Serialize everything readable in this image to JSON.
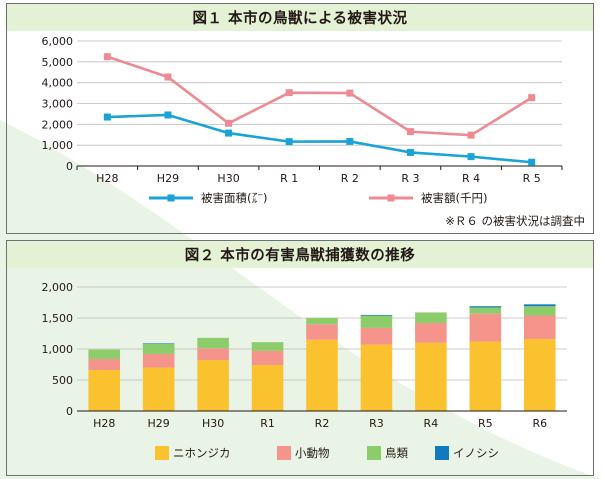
{
  "charts": [
    {
      "type": "line",
      "title": "図１ 本市の鳥獣による被害状況",
      "categories": [
        "H28",
        "H29",
        "H30",
        "R 1",
        "R 2",
        "R 3",
        "R 4",
        "R 5"
      ],
      "ylim": [
        0,
        6000
      ],
      "yticks": [
        "0",
        "1,000",
        "2,000",
        "3,000",
        "4,000",
        "5,000",
        "6,000"
      ],
      "ytick_values": [
        0,
        1000,
        2000,
        3000,
        4000,
        5000,
        6000
      ],
      "grid": true,
      "legend_position": "bottom",
      "series": [
        {
          "name": "被害面積(㌃)",
          "color": "#1ba3d9",
          "marker": "square",
          "values": [
            2350,
            2450,
            1580,
            1170,
            1180,
            650,
            450,
            180
          ]
        },
        {
          "name": "被害額(千円)",
          "color": "#ee8a93",
          "marker": "square",
          "values": [
            5250,
            4270,
            2050,
            3520,
            3500,
            1650,
            1480,
            3280
          ]
        }
      ],
      "note": "※Ｒ６ の被害状況は調査中"
    },
    {
      "type": "bar",
      "stacked": true,
      "title": "図２ 本市の有害鳥獣捕獲数の推移",
      "categories": [
        "H28",
        "H29",
        "H30",
        "R1",
        "R2",
        "R3",
        "R4",
        "R5",
        "R6"
      ],
      "ylim": [
        0,
        2000
      ],
      "yticks": [
        "0",
        "500",
        "1,000",
        "1,500",
        "2,000"
      ],
      "ytick_values": [
        0,
        500,
        1000,
        1500,
        2000
      ],
      "grid": true,
      "legend_position": "bottom",
      "series": [
        {
          "name": "ニホンジカ",
          "color": "#f9c22e",
          "values": [
            660,
            700,
            820,
            740,
            1150,
            1070,
            1100,
            1120,
            1160
          ]
        },
        {
          "name": "小動物",
          "color": "#f4948a",
          "values": [
            180,
            220,
            190,
            230,
            250,
            270,
            320,
            450,
            380
          ]
        },
        {
          "name": "鳥類",
          "color": "#8ccc6a",
          "values": [
            150,
            160,
            170,
            140,
            100,
            200,
            170,
            100,
            150
          ]
        },
        {
          "name": "イノシシ",
          "color": "#0f7abd",
          "values": [
            0,
            10,
            0,
            0,
            0,
            10,
            0,
            20,
            30
          ]
        }
      ]
    }
  ]
}
